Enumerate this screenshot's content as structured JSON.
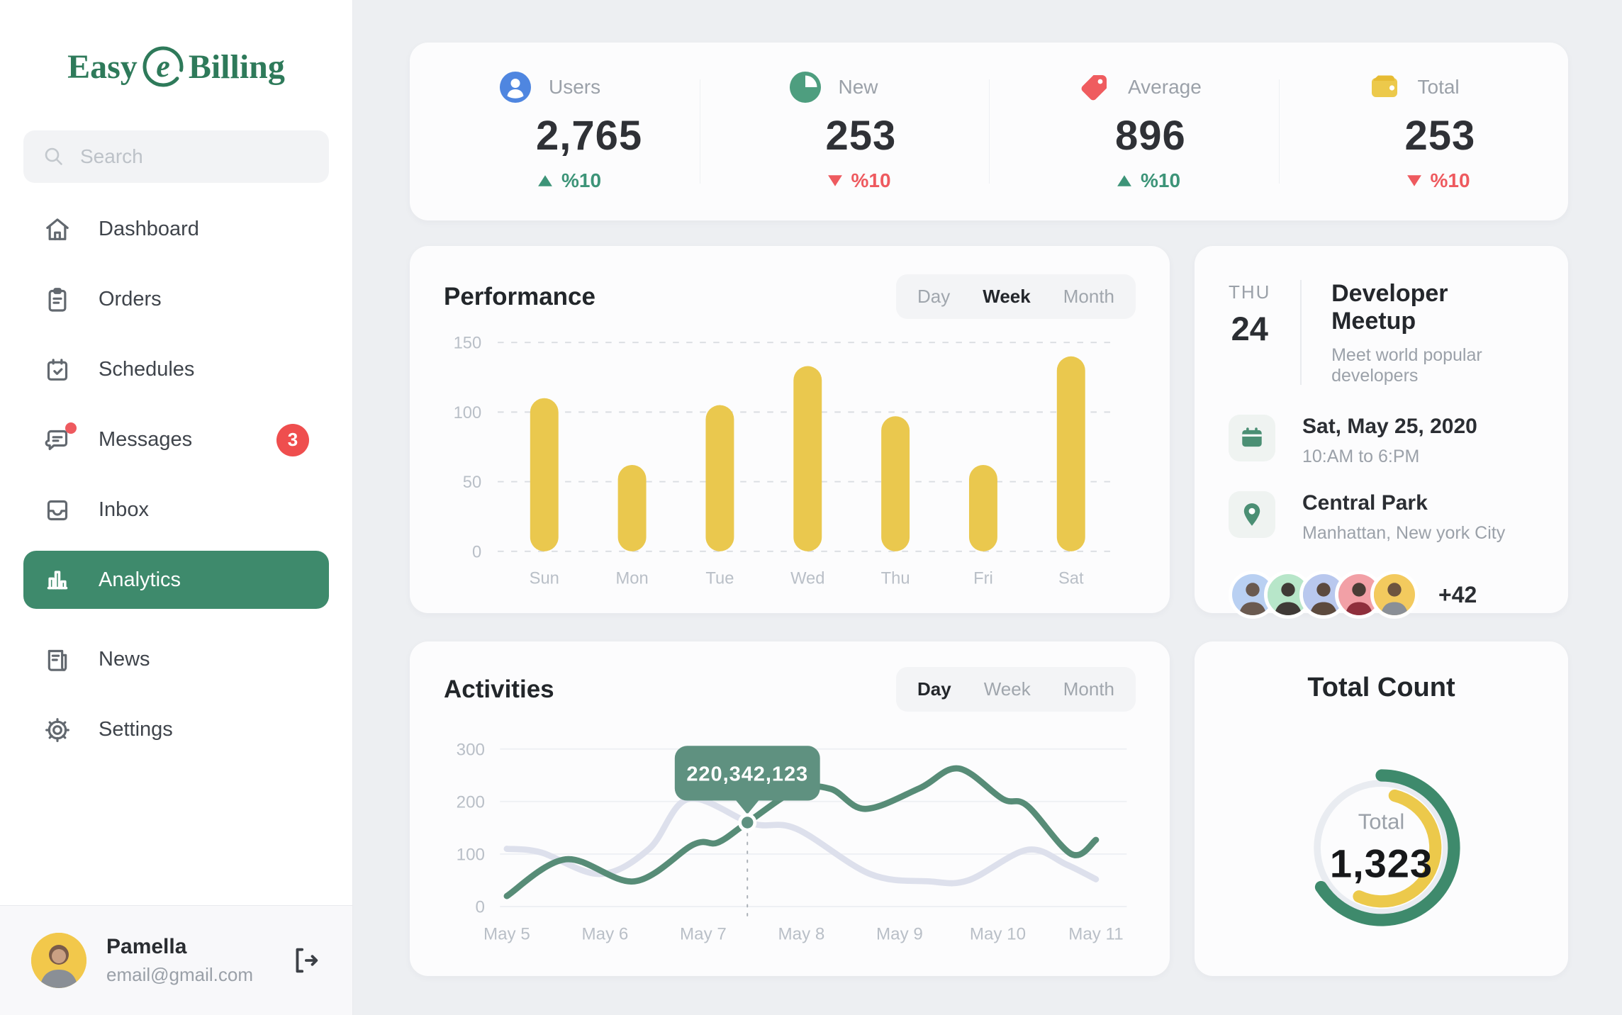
{
  "brand": {
    "easy": "Easy",
    "mark": "e",
    "billing": "Billing",
    "color": "#2e7a5a"
  },
  "search": {
    "placeholder": "Search"
  },
  "sidebar": {
    "items": [
      {
        "label": "Dashboard",
        "icon": "home-icon"
      },
      {
        "label": "Orders",
        "icon": "clipboard-icon"
      },
      {
        "label": "Schedules",
        "icon": "calendar-check-icon"
      },
      {
        "label": "Messages",
        "icon": "chat-icon",
        "badge": "3"
      },
      {
        "label": "Inbox",
        "icon": "inbox-icon"
      },
      {
        "label": "Analytics",
        "icon": "bar-chart-icon",
        "active": true
      },
      {
        "label": "News",
        "icon": "news-icon"
      },
      {
        "label": "Settings",
        "icon": "gear-icon"
      }
    ]
  },
  "profile": {
    "name": "Pamella",
    "email": "email@gmail.com"
  },
  "stats": [
    {
      "label": "Users",
      "value": "2,765",
      "delta": "%10",
      "direction": "up",
      "icon": "user-icon",
      "icon_color": "#4f86e0"
    },
    {
      "label": "New",
      "value": "253",
      "delta": "%10",
      "direction": "down",
      "icon": "pie-icon",
      "icon_color": "#4e9e7f"
    },
    {
      "label": "Average",
      "value": "896",
      "delta": "%10",
      "direction": "up",
      "icon": "tag-icon",
      "icon_color": "#ef5c5f"
    },
    {
      "label": "Total",
      "value": "253",
      "delta": "%10",
      "direction": "down",
      "icon": "wallet-icon",
      "icon_color": "#ecc94b"
    }
  ],
  "performance": {
    "title": "Performance",
    "tabs": [
      "Day",
      "Week",
      "Month"
    ],
    "active_tab": "Week"
  },
  "activities": {
    "title": "Activities",
    "tabs": [
      "Day",
      "Week",
      "Month"
    ],
    "active_tab": "Day"
  },
  "event": {
    "day_abbr": "THU",
    "day_num": "24",
    "title": "Developer Meetup",
    "subtitle": "Meet world popular developers",
    "date": "Sat, May 25, 2020",
    "time": "10:AM to 6:PM",
    "place": "Central Park",
    "city": "Manhattan, New york City",
    "more_count": "+42",
    "avatar_colors": [
      "#b9d0f2",
      "#b7e6c9",
      "#b9c8ee",
      "#f2a0a6",
      "#f3ca5e"
    ]
  },
  "total_count": {
    "title": "Total Count",
    "center_label": "Total",
    "center_value": "1,323"
  },
  "chart_data": [
    {
      "type": "bar",
      "title": "Performance",
      "categories": [
        "Sun",
        "Mon",
        "Tue",
        "Wed",
        "Thu",
        "Fri",
        "Sat"
      ],
      "values": [
        110,
        62,
        105,
        133,
        97,
        62,
        140
      ],
      "ylim": [
        0,
        150
      ],
      "yticks": [
        0,
        50,
        100,
        150
      ],
      "color": "#eac84e",
      "grid": "dashed-horizontal",
      "legend": "none"
    },
    {
      "type": "line",
      "title": "Activities",
      "xdomain": [
        5,
        11
      ],
      "xlabels": [
        "May 5",
        "May 6",
        "May 7",
        "May 8",
        "May 9",
        "May 10",
        "May 11"
      ],
      "ylim": [
        0,
        300
      ],
      "yticks": [
        0,
        100,
        200,
        300
      ],
      "grid": "light-horizontal",
      "legend": "none",
      "series": [
        {
          "name": "secondary",
          "color": "#dde0ec",
          "points": [
            [
              5,
              110
            ],
            [
              5.35,
              103
            ],
            [
              5.95,
              62
            ],
            [
              6.45,
              110
            ],
            [
              6.85,
              205
            ],
            [
              7.5,
              158
            ],
            [
              7.95,
              148
            ],
            [
              8.7,
              62
            ],
            [
              9.3,
              48
            ],
            [
              9.7,
              50
            ],
            [
              10.3,
              108
            ],
            [
              10.7,
              80
            ],
            [
              11,
              52
            ]
          ]
        },
        {
          "name": "primary",
          "color": "#578c77",
          "points": [
            [
              5,
              20
            ],
            [
              5.6,
              90
            ],
            [
              6.3,
              48
            ],
            [
              6.9,
              118
            ],
            [
              7.15,
              122
            ],
            [
              7.45,
              160
            ],
            [
              7.95,
              222
            ],
            [
              8.3,
              224
            ],
            [
              8.65,
              186
            ],
            [
              9.2,
              225
            ],
            [
              9.6,
              263
            ],
            [
              10.05,
              205
            ],
            [
              10.3,
              192
            ],
            [
              10.75,
              100
            ],
            [
              11,
              127
            ]
          ]
        }
      ],
      "tooltip": {
        "x": 7.45,
        "y": 160,
        "label": "220,342,123"
      },
      "tooltip_color": "#5f9180"
    },
    {
      "type": "donut",
      "title": "Total Count",
      "center_label": "Total",
      "center_value": 1323,
      "track_r": 132,
      "track_color": "#e9ecf1",
      "segments": [
        {
          "name": "outer-green",
          "color": "#3e8a6c",
          "r": 148,
          "start_deg": 0,
          "end_deg": 237
        },
        {
          "name": "inner-yellow",
          "color": "#ecc94b",
          "r": 110,
          "start_deg": 14,
          "end_deg": 205
        }
      ]
    }
  ]
}
